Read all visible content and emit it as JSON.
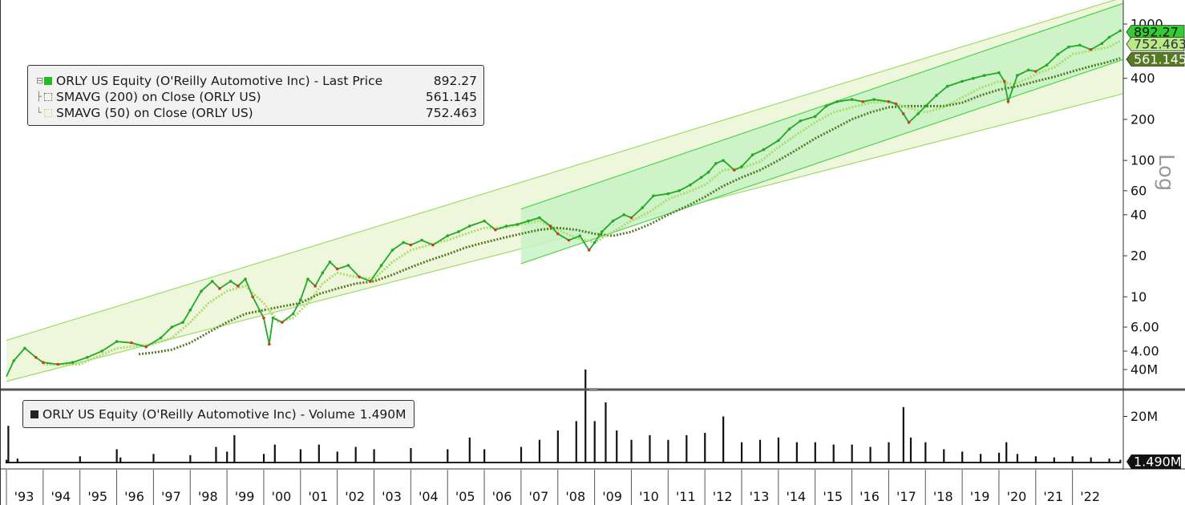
{
  "chart_data": [
    {
      "type": "line",
      "scale": "log",
      "ylim": [
        2.5,
        1100
      ],
      "scale_label": "Log",
      "y_ticks": [
        "4.00",
        "6.00",
        "10",
        "20",
        "40",
        "60",
        "100",
        "200",
        "400",
        "1000"
      ],
      "y_tick_values": [
        4,
        6,
        10,
        20,
        40,
        60,
        100,
        200,
        400,
        1000
      ],
      "x_years": [
        1993,
        1994,
        1995,
        1996,
        1997,
        1998,
        1999,
        2000,
        2001,
        2002,
        2003,
        2004,
        2005,
        2006,
        2007,
        2008,
        2009,
        2010,
        2011,
        2012,
        2013,
        2014,
        2015,
        2016,
        2017,
        2018,
        2019,
        2020,
        2021,
        2022
      ],
      "x_labels": [
        "'93",
        "'94",
        "'95",
        "'96",
        "'97",
        "'98",
        "'99",
        "'00",
        "'01",
        "'02",
        "'03",
        "'04",
        "'05",
        "'06",
        "'07",
        "'08",
        "'09",
        "'10",
        "'11",
        "'12",
        "'13",
        "'14",
        "'15",
        "'16",
        "'17",
        "'18",
        "'19",
        "'20",
        "'21",
        "'22"
      ],
      "legend": [
        {
          "label": "ORLY US Equity (O'Reilly Automotive Inc) - Last Price",
          "value": "892.27",
          "color": "#22bb22"
        },
        {
          "label": "SMAVG (200)  on Close (ORLY US)",
          "value": "561.145",
          "color": "#557a22"
        },
        {
          "label": "SMAVG (50)  on Close (ORLY US)",
          "value": "752.463",
          "color": "#a8dd66"
        }
      ],
      "price_tags": [
        {
          "value": "892.27",
          "color": "#33cc33"
        },
        {
          "value": "752.463",
          "color": "#b8e888"
        },
        {
          "value": "561.145",
          "color": "#557a22"
        }
      ],
      "series": [
        {
          "name": "ORLY US Equity (O'Reilly Automotive Inc) - Last Price",
          "x": [
            1993.0,
            1993.2,
            1993.5,
            1993.8,
            1994.0,
            1994.4,
            1994.8,
            1995.2,
            1995.6,
            1996.0,
            1996.4,
            1996.8,
            1997.2,
            1997.5,
            1997.8,
            1998.0,
            1998.3,
            1998.6,
            1998.8,
            1999.1,
            1999.3,
            1999.5,
            1999.7,
            2000.0,
            2000.15,
            2000.25,
            2000.5,
            2000.8,
            2001.0,
            2001.2,
            2001.4,
            2001.6,
            2001.8,
            2002.0,
            2002.3,
            2002.6,
            2002.9,
            2003.2,
            2003.5,
            2003.8,
            2004.0,
            2004.3,
            2004.6,
            2005.0,
            2005.3,
            2005.6,
            2006.0,
            2006.3,
            2006.6,
            2006.9,
            2007.2,
            2007.5,
            2007.8,
            2008.0,
            2008.3,
            2008.6,
            2008.85,
            2009.0,
            2009.2,
            2009.5,
            2009.8,
            2010.0,
            2010.3,
            2010.6,
            2011.0,
            2011.3,
            2011.6,
            2011.9,
            2012.1,
            2012.3,
            2012.5,
            2012.8,
            2013.0,
            2013.3,
            2013.6,
            2014.0,
            2014.3,
            2014.6,
            2015.0,
            2015.3,
            2015.6,
            2016.0,
            2016.3,
            2016.6,
            2017.0,
            2017.2,
            2017.4,
            2017.55,
            2017.8,
            2018.0,
            2018.3,
            2018.6,
            2019.0,
            2019.3,
            2019.6,
            2020.0,
            2020.15,
            2020.25,
            2020.5,
            2020.8,
            2021.0,
            2021.3,
            2021.6,
            2021.9,
            2022.2,
            2022.5,
            2022.8,
            2023.0,
            2023.3
          ],
          "values": [
            2.6,
            3.4,
            4.2,
            3.6,
            3.3,
            3.2,
            3.3,
            3.6,
            4.0,
            4.7,
            4.6,
            4.3,
            5.0,
            6.0,
            6.5,
            8.0,
            11.0,
            13.0,
            11.5,
            13.0,
            12.0,
            13.5,
            10.0,
            7.0,
            4.5,
            7.0,
            6.5,
            7.5,
            9.5,
            13.5,
            12.0,
            15.0,
            18.0,
            16.0,
            17.0,
            14.0,
            13.0,
            17.0,
            22.0,
            25.0,
            24.0,
            26.0,
            24.0,
            28.0,
            30.0,
            33.0,
            36.0,
            31.0,
            33.0,
            34.0,
            36.0,
            38.0,
            33.0,
            29.0,
            26.0,
            28.0,
            22.0,
            25.0,
            30.0,
            36.0,
            40.0,
            38.0,
            45.0,
            55.0,
            57.0,
            60.0,
            66.0,
            75.0,
            82.0,
            95.0,
            100.0,
            85.0,
            90.0,
            110.0,
            120.0,
            140.0,
            170.0,
            195.0,
            210.0,
            250.0,
            270.0,
            280.0,
            270.0,
            280.0,
            270.0,
            260.0,
            220.0,
            190.0,
            220.0,
            250.0,
            300.0,
            350.0,
            380.0,
            400.0,
            420.0,
            440.0,
            380.0,
            270.0,
            420.0,
            460.0,
            450.0,
            500.0,
            600.0,
            680.0,
            700.0,
            650.0,
            720.0,
            800.0,
            892.27
          ]
        },
        {
          "name": "SMAVG (50)  on Close (ORLY US)",
          "x": [
            1994.0,
            1995.0,
            1996.0,
            1997.0,
            1997.5,
            1998.0,
            1998.5,
            1999.0,
            1999.5,
            2000.0,
            2000.4,
            2000.8,
            2001.2,
            2001.6,
            2002.0,
            2002.5,
            2003.0,
            2003.5,
            2004.0,
            2004.5,
            2005.0,
            2005.5,
            2006.0,
            2006.5,
            2007.0,
            2007.5,
            2008.0,
            2008.5,
            2009.0,
            2009.5,
            2010.0,
            2010.5,
            2011.0,
            2011.5,
            2012.0,
            2012.5,
            2013.0,
            2013.5,
            2014.0,
            2014.5,
            2015.0,
            2015.5,
            2016.0,
            2016.5,
            2017.0,
            2017.5,
            2018.0,
            2018.5,
            2019.0,
            2019.5,
            2020.0,
            2020.4,
            2020.8,
            2021.0,
            2021.5,
            2022.0,
            2022.5,
            2023.0,
            2023.3
          ],
          "values": [
            3.2,
            3.2,
            4.2,
            4.5,
            5.0,
            6.5,
            9.0,
            11.0,
            12.0,
            9.0,
            6.5,
            7.0,
            9.0,
            12.5,
            15.0,
            14.0,
            13.5,
            18.0,
            22.0,
            24.0,
            26.0,
            29.0,
            32.0,
            32.0,
            34.0,
            36.0,
            31.0,
            27.0,
            25.0,
            30.0,
            36.0,
            42.0,
            52.0,
            58.0,
            66.0,
            85.0,
            88.0,
            98.0,
            125.0,
            155.0,
            190.0,
            225.0,
            245.0,
            265.0,
            270.0,
            245.0,
            225.0,
            245.0,
            290.0,
            340.0,
            380.0,
            360.0,
            400.0,
            430.0,
            480.0,
            600.0,
            640.0,
            680.0,
            752.463
          ]
        },
        {
          "name": "SMAVG (200)  on Close (ORLY US)",
          "x": [
            1996.6,
            1997.0,
            1997.5,
            1998.0,
            1998.5,
            1999.0,
            1999.5,
            2000.0,
            2000.5,
            2001.0,
            2001.5,
            2002.0,
            2002.5,
            2003.0,
            2003.5,
            2004.0,
            2004.5,
            2005.0,
            2005.5,
            2006.0,
            2006.5,
            2007.0,
            2007.5,
            2008.0,
            2008.5,
            2009.0,
            2009.5,
            2010.0,
            2010.5,
            2011.0,
            2011.5,
            2012.0,
            2012.5,
            2013.0,
            2013.5,
            2014.0,
            2014.5,
            2015.0,
            2015.5,
            2016.0,
            2016.5,
            2017.0,
            2017.5,
            2018.0,
            2018.5,
            2019.0,
            2019.5,
            2020.0,
            2020.5,
            2021.0,
            2021.5,
            2022.0,
            2022.5,
            2023.0,
            2023.3
          ],
          "values": [
            3.8,
            3.9,
            4.1,
            4.6,
            5.5,
            6.5,
            7.5,
            8.0,
            8.5,
            9.0,
            10.5,
            11.5,
            12.5,
            13.0,
            14.5,
            16.5,
            18.5,
            20.5,
            23.0,
            25.0,
            27.0,
            29.0,
            31.0,
            32.0,
            31.0,
            29.0,
            28.0,
            30.0,
            34.0,
            40.0,
            46.0,
            54.0,
            65.0,
            75.0,
            85.0,
            100.0,
            120.0,
            145.0,
            170.0,
            200.0,
            225.0,
            245.0,
            250.0,
            250.0,
            250.0,
            265.0,
            300.0,
            330.0,
            350.0,
            380.0,
            410.0,
            450.0,
            490.0,
            530.0,
            561.145
          ]
        }
      ],
      "channels": [
        {
          "x": [
            1993.0,
            2023.8
          ],
          "upper": [
            4.8,
            1700.0
          ],
          "lower": [
            2.4,
            330.0
          ]
        },
        {
          "x": [
            2007.0,
            2023.8
          ],
          "upper": [
            44.0,
            1550.0
          ],
          "lower": [
            17.5,
            600.0
          ]
        }
      ]
    },
    {
      "type": "bar",
      "ylim": [
        0,
        42000000
      ],
      "y_ticks": [
        "40M",
        "20M"
      ],
      "y_tick_values": [
        40000000,
        20000000
      ],
      "legend": {
        "label": "ORLY US Equity (O'Reilly Automotive Inc) - Volume",
        "value": "1.490M",
        "color": "#222222"
      },
      "last_tag": {
        "value": "1.490M",
        "color": "#111111"
      },
      "x": [
        1993.0,
        1993.05,
        1993.3,
        1995.0,
        1996.0,
        1996.1,
        1997.0,
        1998.0,
        1998.7,
        1999.0,
        1999.2,
        2000.0,
        2000.3,
        2001.0,
        2001.5,
        2002.0,
        2002.5,
        2003.0,
        2004.0,
        2005.0,
        2005.6,
        2006.0,
        2007.0,
        2007.5,
        2008.0,
        2008.5,
        2008.75,
        2009.0,
        2009.3,
        2009.6,
        2010.0,
        2010.5,
        2011.0,
        2011.5,
        2012.0,
        2012.5,
        2013.0,
        2013.5,
        2014.0,
        2014.5,
        2015.0,
        2015.5,
        2016.0,
        2016.5,
        2017.0,
        2017.4,
        2017.6,
        2018.0,
        2018.5,
        2019.0,
        2019.5,
        2020.0,
        2020.2,
        2020.5,
        2021.0,
        2021.5,
        2022.0,
        2022.5,
        2023.0,
        2023.3
      ],
      "values": [
        1500000,
        16000000,
        2000000,
        3000000,
        6000000,
        2500000,
        4000000,
        3500000,
        7000000,
        5000000,
        12000000,
        4000000,
        8000000,
        6000000,
        8000000,
        5000000,
        7000000,
        6000000,
        6500000,
        6000000,
        11000000,
        6000000,
        7000000,
        10000000,
        14000000,
        18000000,
        40000000,
        18000000,
        26000000,
        14000000,
        10000000,
        12000000,
        10000000,
        12000000,
        13000000,
        20000000,
        9000000,
        10000000,
        11000000,
        9000000,
        9000000,
        8000000,
        8000000,
        7000000,
        9000000,
        24000000,
        11000000,
        9000000,
        6000000,
        5000000,
        4000000,
        4500000,
        9000000,
        4000000,
        3000000,
        2500000,
        3000000,
        2500000,
        2000000,
        1490000
      ]
    }
  ]
}
